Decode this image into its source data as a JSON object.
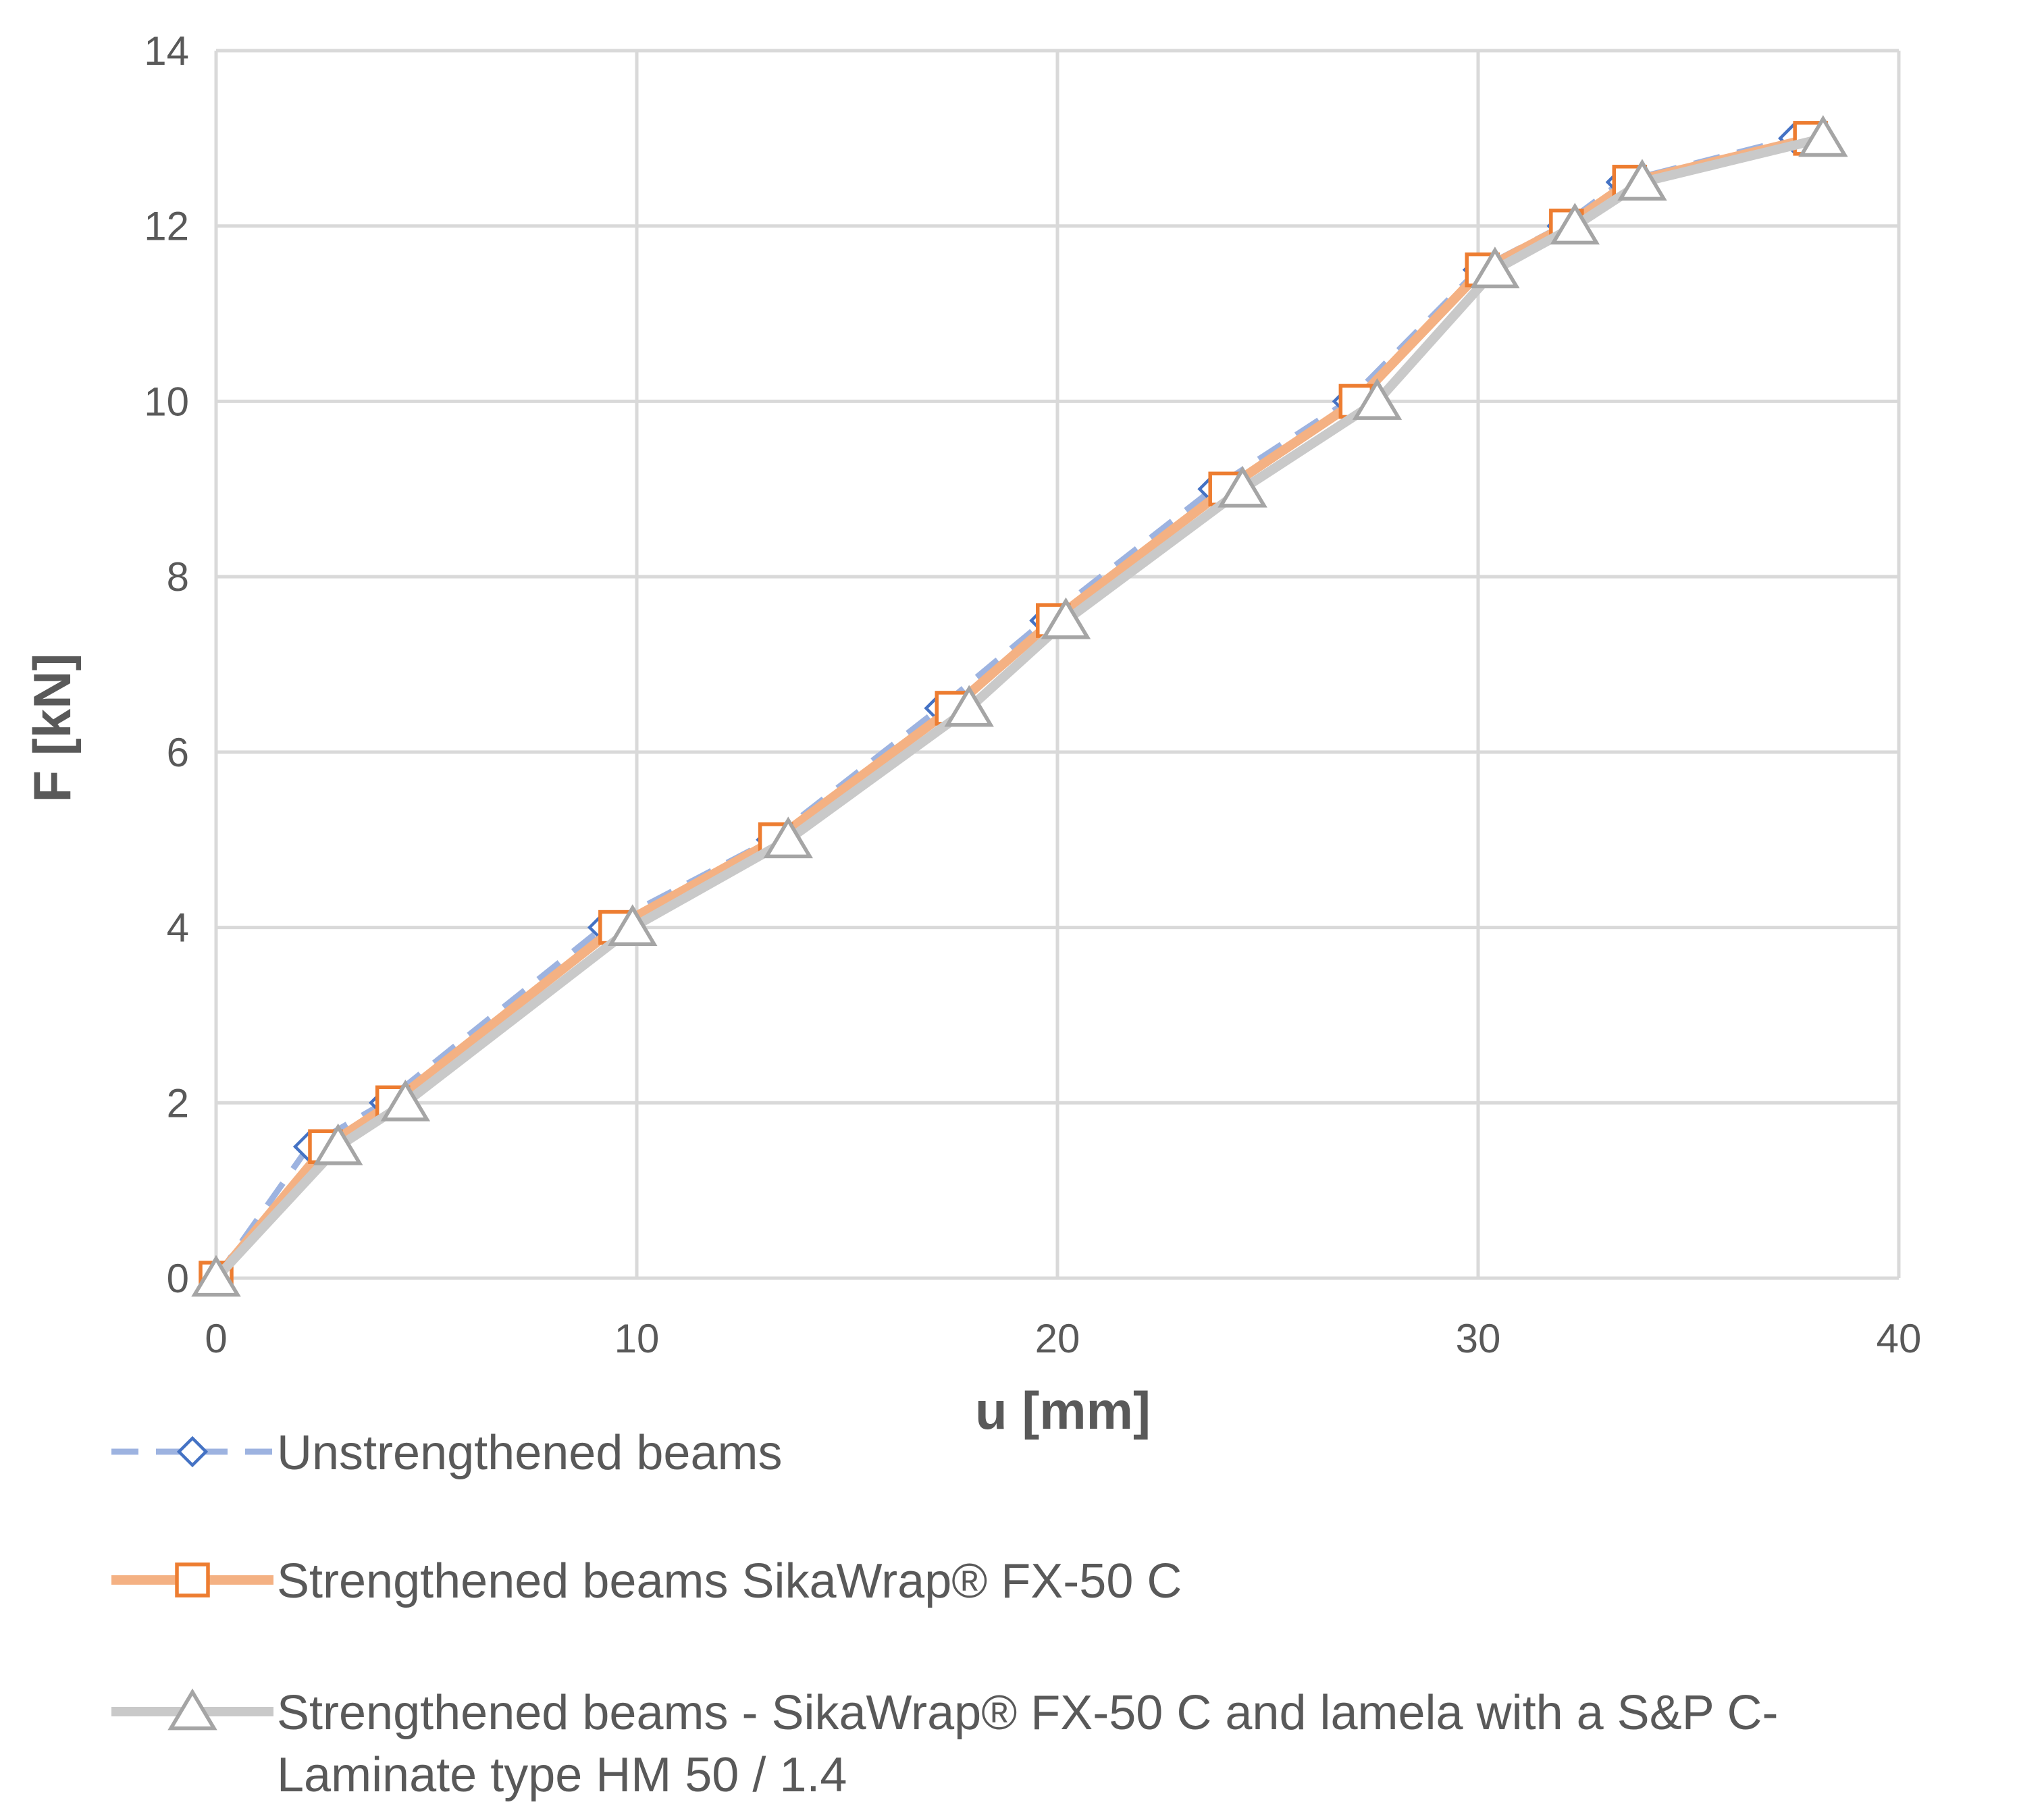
{
  "chart_data": {
    "type": "line",
    "title": "",
    "xlabel": "u [mm]",
    "ylabel": "F [kN]",
    "xlim": [
      0,
      40
    ],
    "ylim": [
      0,
      14
    ],
    "xticks": [
      0,
      10,
      20,
      30,
      40
    ],
    "yticks": [
      0,
      2,
      4,
      6,
      8,
      10,
      12,
      14
    ],
    "x_tick_labels": [
      "0",
      "10",
      "20",
      "30",
      "40"
    ],
    "y_tick_labels": [
      "0",
      "2",
      "4",
      "6",
      "8",
      "10",
      "12",
      "14"
    ],
    "grid": true,
    "legend_position": "bottom",
    "series": [
      {
        "name": "Unstrengthened beams",
        "color": "#4472C4",
        "line_color": "#9DB3E0",
        "line_style": "dashed",
        "marker": "diamond",
        "x": [
          0,
          2.2,
          4.0,
          9.2,
          13.2,
          17.2,
          19.7,
          23.7,
          26.9,
          30.0,
          32.0,
          33.4,
          37.5
        ],
        "y": [
          0,
          1.5,
          2.0,
          4.0,
          5.0,
          6.5,
          7.5,
          9.0,
          10.0,
          11.5,
          12.0,
          12.5,
          13.0
        ]
      },
      {
        "name": "Strengthened beams SikaWrap® FX-50 C",
        "color": "#ED7D31",
        "line_color": "#F4B183",
        "line_style": "solid",
        "marker": "square",
        "x": [
          0,
          2.6,
          4.2,
          9.5,
          13.3,
          17.5,
          19.9,
          24.0,
          27.1,
          30.1,
          32.1,
          33.6,
          37.9
        ],
        "y": [
          0,
          1.5,
          2.0,
          4.0,
          5.0,
          6.5,
          7.5,
          9.0,
          10.0,
          11.5,
          12.0,
          12.5,
          13.0
        ]
      },
      {
        "name": "Strengthened beams - SikaWrap® FX-50 C and lamela with a S&P C-Laminate type HM 50 / 1.4",
        "legend_lines": [
          "Strengthened beams - SikaWrap® FX-50 C and lamela with a S&P C-",
          "Laminate type HM 50 / 1.4"
        ],
        "color": "#A5A5A5",
        "line_color": "#C9C9C9",
        "line_style": "solid",
        "marker": "triangle",
        "x": [
          0,
          2.9,
          4.5,
          9.9,
          13.6,
          17.9,
          20.2,
          24.4,
          27.6,
          30.4,
          32.3,
          33.9,
          38.2
        ],
        "y": [
          0,
          1.5,
          2.0,
          4.0,
          5.0,
          6.5,
          7.5,
          9.0,
          10.0,
          11.5,
          12.0,
          12.5,
          13.0
        ]
      }
    ]
  }
}
